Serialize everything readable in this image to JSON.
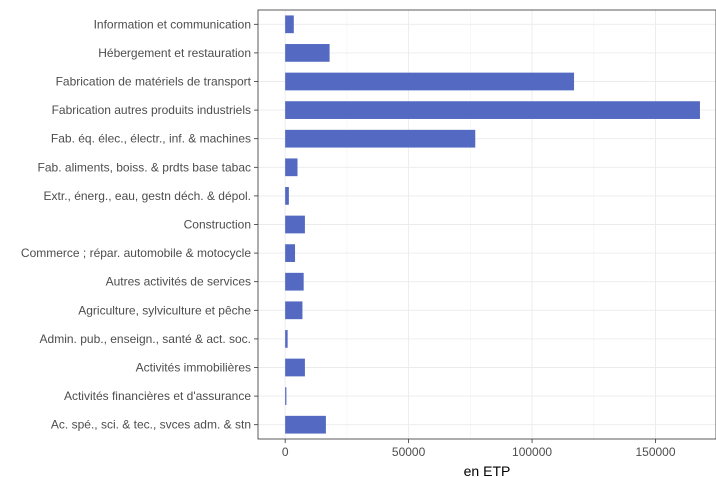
{
  "chart_data": {
    "type": "bar",
    "orientation": "horizontal",
    "title": "",
    "xlabel": "en ETP",
    "ylabel": "",
    "xlim": [
      -11000,
      174500
    ],
    "xticks": [
      0,
      50000,
      100000,
      150000
    ],
    "xtick_labels": [
      "0",
      "50000",
      "100000",
      "150000"
    ],
    "grid": true,
    "bar_color": "#5369c2",
    "categories": [
      "Information et communication",
      "Hébergement et restauration",
      "Fabrication de matériels de transport",
      "Fabrication autres produits industriels",
      "Fab. éq. élec., électr., inf. & machines",
      "Fab. aliments, boiss. & prdts base tabac",
      "Extr., énerg., eau, gestn déch. & dépol.",
      "Construction",
      "Commerce ; répar. automobile & motocycle",
      "Autres activités de services",
      "Agriculture, sylviculture et pêche",
      "Admin. pub., enseign., santé & act. soc.",
      "Activités immobilières",
      "Activités financières et d'assurance",
      "Ac. spé., sci. & tec., svces adm. & stn"
    ],
    "values": [
      3500,
      18000,
      117000,
      168000,
      77000,
      5000,
      1500,
      8000,
      4000,
      7500,
      7000,
      1000,
      8000,
      500,
      16500
    ]
  }
}
